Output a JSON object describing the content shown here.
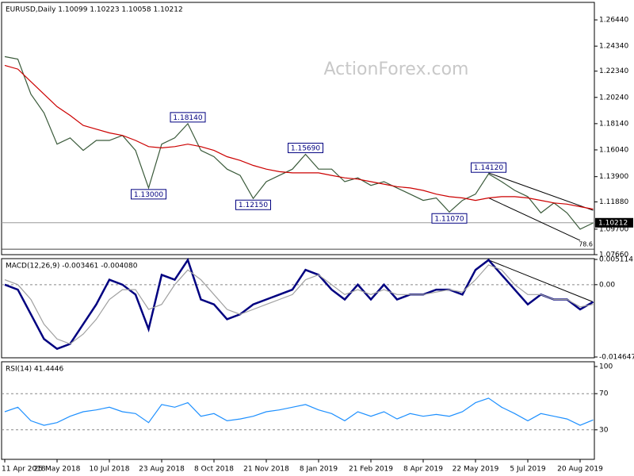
{
  "chart_data": [
    {
      "type": "line",
      "title": "EURUSD,Daily  1.10099 1.10223 1.10058 1.10212",
      "watermark": "ActionForex.com",
      "categories": [
        "11 Apr 2018",
        null,
        null,
        null,
        "25 May 2018",
        null,
        null,
        null,
        "10 Jul 2018",
        null,
        null,
        null,
        "23 Aug 2018",
        null,
        null,
        null,
        "8 Oct 2018",
        null,
        null,
        null,
        "21 Nov 2018",
        null,
        null,
        null,
        "8 Jan 2019",
        null,
        null,
        null,
        "21 Feb 2019",
        null,
        null,
        null,
        "8 Apr 2019",
        null,
        null,
        null,
        "22 May 2019",
        null,
        null,
        null,
        "5 Jul 2019",
        null,
        null,
        null,
        "20 Aug 2019",
        null
      ],
      "series": [
        {
          "color": "#3a5a3a",
          "values": [
            1.235,
            1.233,
            1.205,
            1.19,
            1.165,
            1.17,
            1.16,
            1.168,
            1.168,
            1.172,
            1.16,
            1.13,
            1.165,
            1.17,
            1.1814,
            1.16,
            1.155,
            1.145,
            1.14,
            1.1215,
            1.135,
            1.14,
            1.145,
            1.1569,
            1.145,
            1.145,
            1.135,
            1.138,
            1.132,
            1.135,
            1.13,
            1.125,
            1.12,
            1.122,
            1.1107,
            1.12,
            1.125,
            1.1412,
            1.135,
            1.128,
            1.123,
            1.11,
            1.118,
            1.11,
            1.097,
            1.102
          ]
        },
        {
          "color": "#cc0000",
          "values": [
            1.228,
            1.225,
            1.215,
            1.205,
            1.195,
            1.188,
            1.18,
            1.177,
            1.174,
            1.172,
            1.168,
            1.163,
            1.162,
            1.163,
            1.165,
            1.163,
            1.16,
            1.155,
            1.152,
            1.148,
            1.145,
            1.143,
            1.142,
            1.142,
            1.142,
            1.14,
            1.138,
            1.137,
            1.135,
            1.133,
            1.131,
            1.13,
            1.128,
            1.125,
            1.123,
            1.122,
            1.12,
            1.122,
            1.123,
            1.123,
            1.122,
            1.12,
            1.118,
            1.117,
            1.115,
            1.113
          ]
        }
      ],
      "annotations": [
        {
          "label": "1.18140",
          "value": 1.1814
        },
        {
          "label": "1.13000",
          "value": 1.13
        },
        {
          "label": "1.15690",
          "value": 1.1569
        },
        {
          "label": "1.12150",
          "value": 1.1215
        },
        {
          "label": "1.14120",
          "value": 1.1412
        },
        {
          "label": "1.11070",
          "value": 1.1107
        }
      ],
      "channel": [
        {
          "from": [
            37,
            1.142
          ],
          "to": [
            45,
            1.112
          ]
        },
        {
          "from": [
            37,
            1.122
          ],
          "to": [
            44,
            1.088
          ]
        }
      ],
      "levels": [
        {
          "label": "78.6",
          "value": 1.081
        }
      ],
      "current_price": {
        "value": 1.10212,
        "label": "1.10212"
      },
      "ylim": [
        1.0766,
        1.2784
      ],
      "yticks": [
        {
          "value": 1.2644,
          "label": "1.26440"
        },
        {
          "value": 1.2434,
          "label": "1.24340"
        },
        {
          "value": 1.2234,
          "label": "1.22340"
        },
        {
          "value": 1.2024,
          "label": "1.20240"
        },
        {
          "value": 1.1814,
          "label": "1.18140"
        },
        {
          "value": 1.1604,
          "label": "1.16040"
        },
        {
          "value": 1.139,
          "label": "1.13900"
        },
        {
          "value": 1.1188,
          "label": "1.11880"
        },
        {
          "value": 1.097,
          "label": "1.09700"
        },
        {
          "value": 1.0766,
          "label": "1.07660"
        }
      ]
    },
    {
      "type": "line",
      "title": "MACD(12,26,9) -0.003461 -0.004080",
      "series": [
        {
          "color": "#000080",
          "values": [
            0.0,
            -0.001,
            -0.006,
            -0.011,
            -0.013,
            -0.012,
            -0.008,
            -0.004,
            0.001,
            0.0,
            -0.002,
            -0.009,
            0.002,
            0.001,
            0.005,
            -0.003,
            -0.004,
            -0.007,
            -0.006,
            -0.004,
            -0.003,
            -0.002,
            -0.001,
            0.003,
            0.002,
            -0.001,
            -0.003,
            0.0,
            -0.003,
            0.0,
            -0.003,
            -0.002,
            -0.002,
            -0.001,
            -0.001,
            -0.002,
            0.003,
            0.005,
            0.002,
            -0.001,
            -0.004,
            -0.002,
            -0.003,
            -0.003,
            -0.005,
            -0.0035
          ]
        },
        {
          "color": "#a0a0a0",
          "values": [
            0.001,
            0.0,
            -0.003,
            -0.008,
            -0.011,
            -0.012,
            -0.01,
            -0.007,
            -0.003,
            -0.001,
            -0.001,
            -0.005,
            -0.004,
            0.0,
            0.003,
            0.001,
            -0.002,
            -0.005,
            -0.006,
            -0.005,
            -0.004,
            -0.003,
            -0.002,
            0.001,
            0.002,
            0.0,
            -0.002,
            -0.001,
            -0.002,
            -0.001,
            -0.002,
            -0.002,
            -0.002,
            -0.0015,
            -0.001,
            -0.0015,
            0.001,
            0.004,
            0.003,
            0.0,
            -0.002,
            -0.002,
            -0.003,
            -0.003,
            -0.0045,
            -0.004
          ]
        }
      ],
      "channel": [
        {
          "from": [
            37,
            0.005
          ],
          "to": [
            45,
            -0.0035
          ]
        }
      ],
      "ylim": [
        -0.014647,
        0.005114
      ],
      "yticks": [
        0.005114,
        {
          "value": 0,
          "label": "0.00"
        },
        -0.014647
      ]
    },
    {
      "type": "line",
      "title": "RSI(14) 41.4446",
      "series": [
        {
          "color": "#1e90ff",
          "values": [
            50,
            55,
            40,
            35,
            38,
            45,
            50,
            52,
            55,
            50,
            48,
            38,
            58,
            55,
            60,
            45,
            48,
            40,
            42,
            45,
            50,
            52,
            55,
            58,
            52,
            48,
            40,
            50,
            45,
            50,
            42,
            48,
            45,
            47,
            45,
            50,
            60,
            65,
            55,
            48,
            40,
            48,
            45,
            42,
            35,
            41
          ]
        }
      ],
      "ylim": [
        0,
        100
      ],
      "yticks": [
        100,
        70,
        30
      ],
      "dashed_ticks": [
        70,
        30
      ]
    }
  ]
}
